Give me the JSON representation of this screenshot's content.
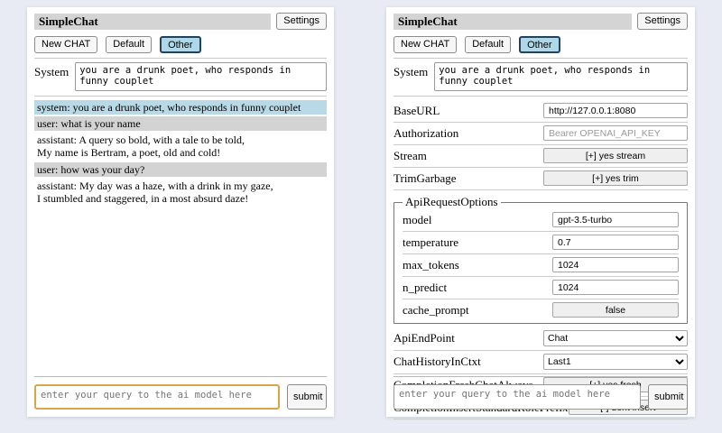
{
  "app": {
    "title": "SimpleChat",
    "settings_label": "Settings"
  },
  "session_buttons": {
    "new_chat": "New CHAT",
    "default": "Default",
    "other": "Other"
  },
  "system_prompt": {
    "label": "System",
    "value": "you are a drunk poet, who responds in funny couplet"
  },
  "chat": {
    "messages": [
      {
        "role": "system",
        "text": "system: you are a drunk poet, who responds in funny couplet"
      },
      {
        "role": "user",
        "text": "user: what is your name"
      },
      {
        "role": "assistant",
        "text": "assistant: A query so bold, with a tale to be told,\nMy name is Bertram, a poet, old and cold!"
      },
      {
        "role": "user",
        "text": "user: how was your day?"
      },
      {
        "role": "assistant",
        "text": "assistant: My day was a haze, with a drink in my gaze,\nI stumbled and staggered, in a most absurd daze!"
      }
    ]
  },
  "settings": {
    "base_url": {
      "label": "BaseURL",
      "value": "http://127.0.0.1:8080"
    },
    "authorization": {
      "label": "Authorization",
      "placeholder": "Bearer OPENAI_API_KEY"
    },
    "stream": {
      "label": "Stream",
      "button": "[+] yes stream"
    },
    "trim_garbage": {
      "label": "TrimGarbage",
      "button": "[+] yes trim"
    },
    "api_request_options": {
      "legend": "ApiRequestOptions",
      "model": {
        "label": "model",
        "value": "gpt-3.5-turbo"
      },
      "temperature": {
        "label": "temperature",
        "value": "0.7"
      },
      "max_tokens": {
        "label": "max_tokens",
        "value": "1024"
      },
      "n_predict": {
        "label": "n_predict",
        "value": "1024"
      },
      "cache_prompt": {
        "label": "cache_prompt",
        "button": "false"
      }
    },
    "api_endpoint": {
      "label": "ApiEndPoint",
      "value": "Chat"
    },
    "chat_history_in_ctxt": {
      "label": "ChatHistoryInCtxt",
      "value": "Last1"
    },
    "completion_fresh_chat_always": {
      "label": "CompletionFreshChatAlways",
      "button": "[+] yes fresh"
    },
    "completion_insert_standard_role_prefix": {
      "label": "CompletionInsertStandardRolePrefix",
      "button": "[-] dont insert"
    }
  },
  "query": {
    "placeholder": "enter your query to the ai model here",
    "submit_label": "submit"
  },
  "colors": {
    "page_background": "#e8ebf4",
    "titlebar_background": "#d4d4d4",
    "active_session_background": "#aed7e8",
    "active_session_border": "#26415c",
    "system_message_background": "#b9d9e6",
    "user_message_background": "#d3d3d3",
    "query_highlight_border": "#dba44a"
  }
}
